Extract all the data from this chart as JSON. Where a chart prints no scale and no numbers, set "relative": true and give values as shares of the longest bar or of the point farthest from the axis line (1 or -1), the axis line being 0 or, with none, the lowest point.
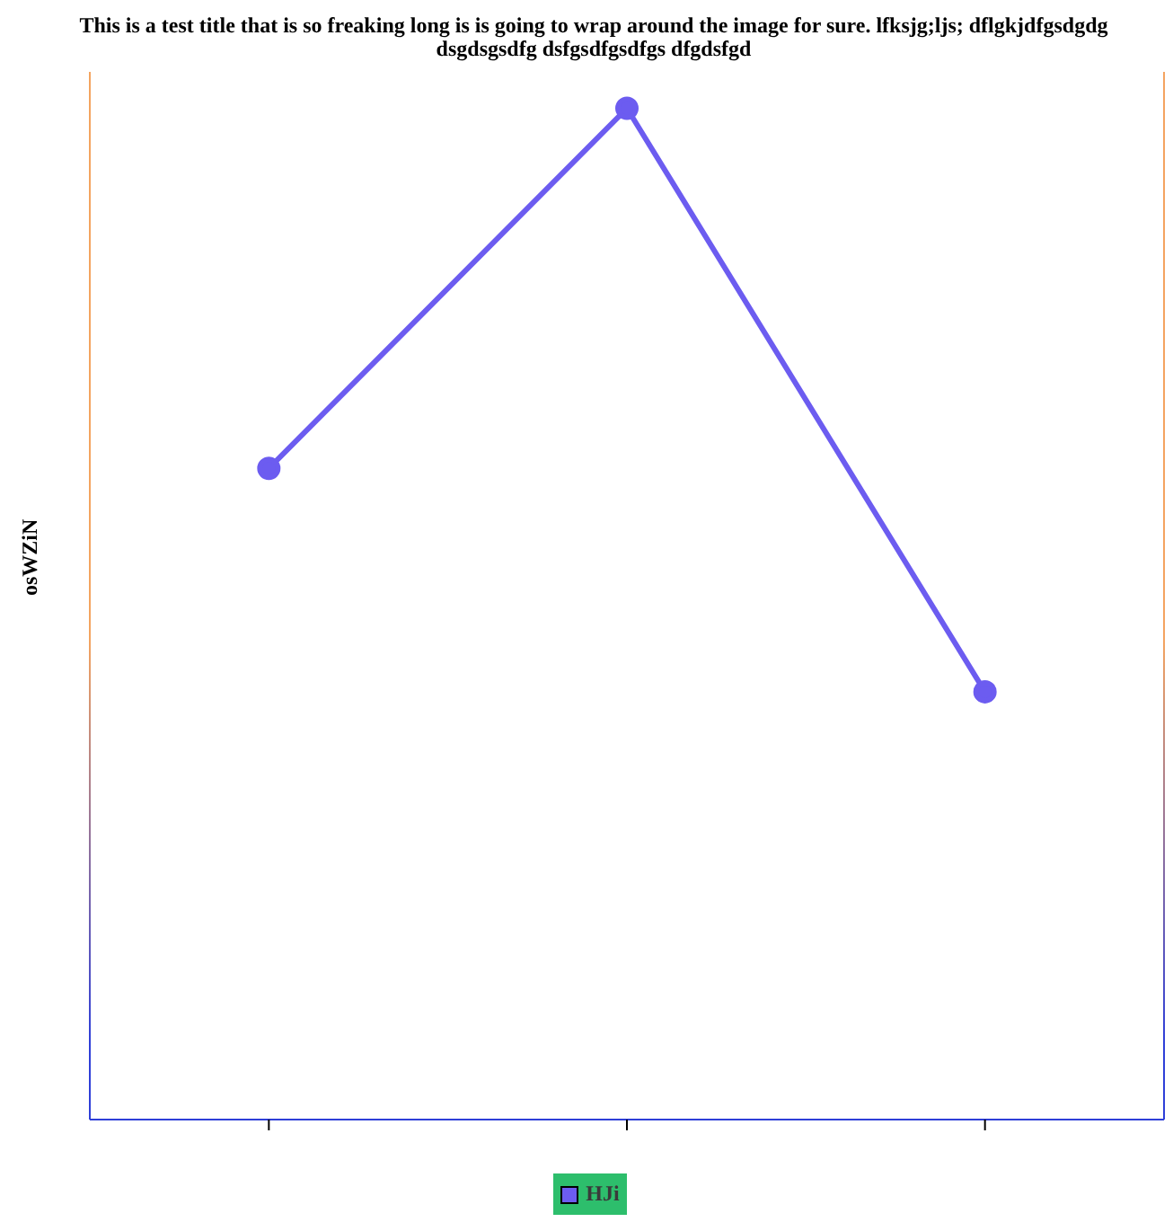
{
  "chart_data": {
    "type": "line",
    "title": "This is a test title that is so freaking long is is going to wrap around the image for sure. lfksjg;ljs; dflgkjdfgsdgdg dsgdsgsdfg dsfgsdfgsdfgs dfgdsfgd",
    "ylabel": "osWZiN",
    "categories": [
      null,
      null,
      null
    ],
    "relative": true,
    "series": [
      {
        "name": "HJi",
        "color": "#6c5cf0",
        "values": [
          0.644,
          1,
          0.423
        ]
      }
    ],
    "marker": "circle",
    "legend": "bottom",
    "grid": false
  }
}
